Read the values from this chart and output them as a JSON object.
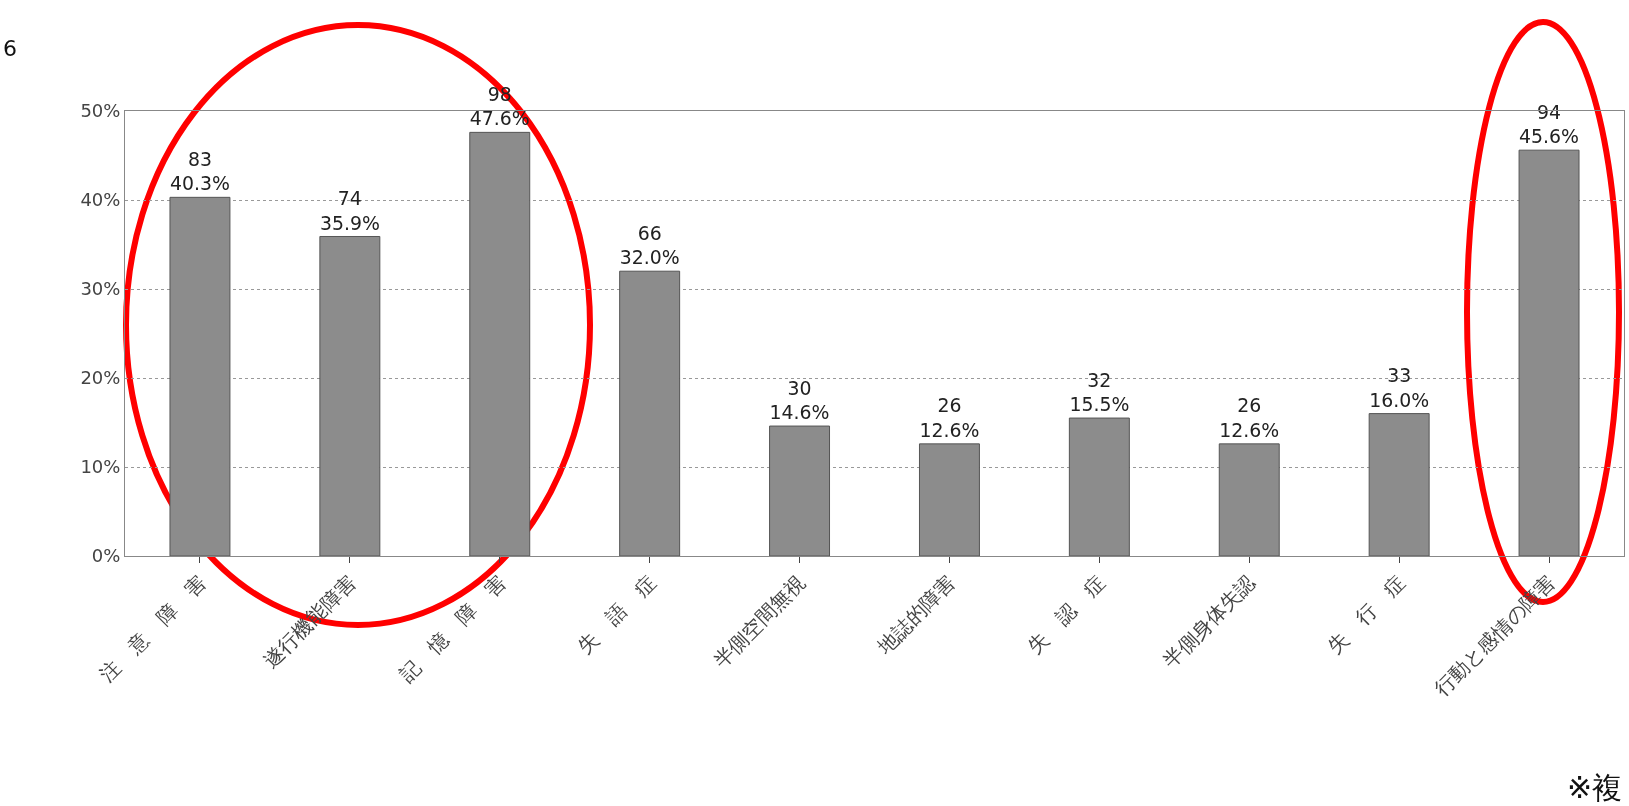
{
  "chart_data": {
    "type": "bar",
    "categories": [
      "注　意　障　害",
      "遂行機能障害",
      "記　憶　障　害",
      "失　語　症",
      "半側空間無視",
      "地誌的障害",
      "失　認　症",
      "半側身体失認",
      "失　行　症",
      "行動と感情の障害"
    ],
    "values": [
      40.3,
      35.9,
      47.6,
      32.0,
      14.6,
      12.6,
      15.5,
      12.6,
      16.0,
      45.6
    ],
    "value_labels": [
      "83\n40.3%",
      "74\n35.9%",
      "98\n47.6%",
      "66\n32.0%",
      "30\n14.6%",
      "26\n12.6%",
      "32\n15.5%",
      "26\n12.6%",
      "33\n16.0%",
      "94\n45.6%"
    ],
    "color": "#8c8c8c",
    "ylim": [
      0,
      50
    ],
    "yticks": [
      {
        "value": 0,
        "label": "0%"
      },
      {
        "value": 10,
        "label": "10%"
      },
      {
        "value": 20,
        "label": "20%"
      },
      {
        "value": 30,
        "label": "30%"
      },
      {
        "value": 40,
        "label": "40%"
      },
      {
        "value": 50,
        "label": "50%"
      }
    ],
    "grid": "y",
    "annotations": [
      "6",
      "※複"
    ]
  }
}
